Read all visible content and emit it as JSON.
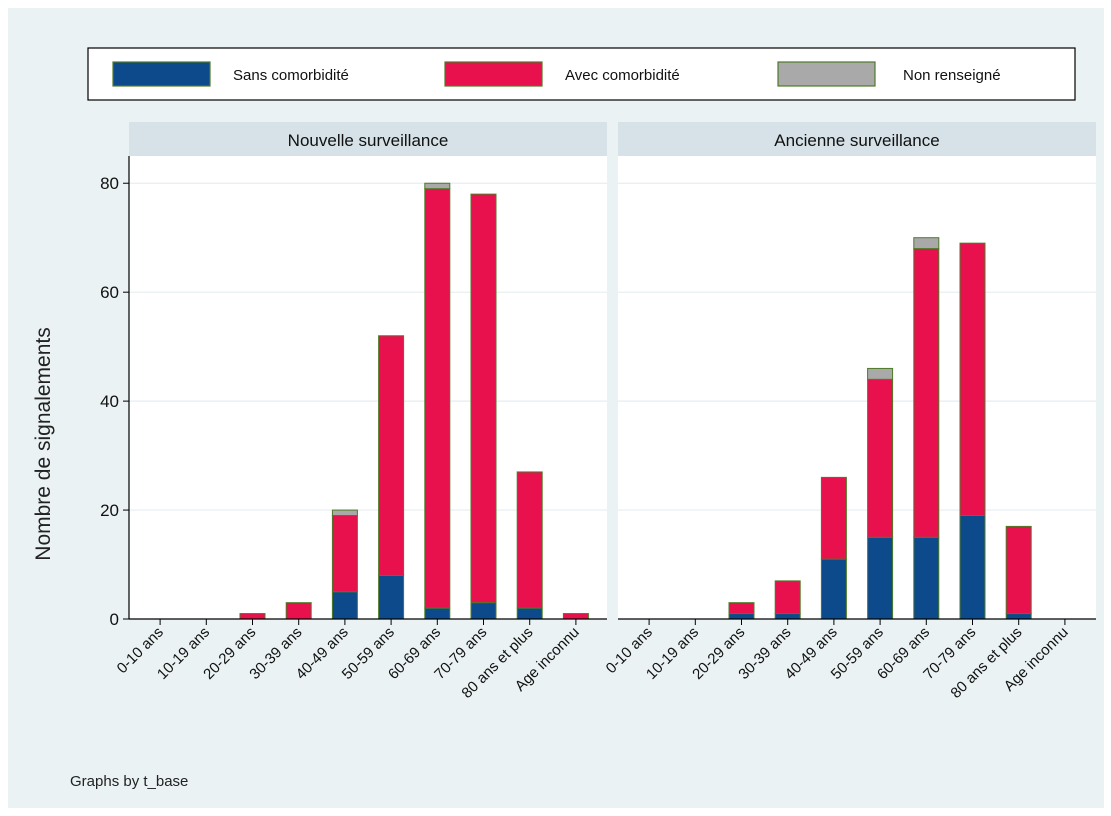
{
  "chart_data": {
    "type": "bar",
    "stacked": true,
    "categories": [
      "0-10 ans",
      "10-19 ans",
      "20-29 ans",
      "30-39 ans",
      "40-49 ans",
      "50-59 ans",
      "60-69 ans",
      "70-79 ans",
      "80 ans et plus",
      "Age inconnu"
    ],
    "ylabel": "Nombre de signalements",
    "ylim": [
      0,
      85
    ],
    "yticks": [
      0,
      20,
      40,
      60,
      80
    ],
    "grid": true,
    "legend_position": "top",
    "legend": [
      {
        "name": "Sans comorbidité",
        "color": "#0d4a8c"
      },
      {
        "name": "Avec comorbidité",
        "color": "#e8104d"
      },
      {
        "name": "Non renseigné",
        "color": "#a9a9a9"
      }
    ],
    "note": "Graphs by t_base",
    "panels": [
      {
        "title": "Nouvelle surveillance",
        "series": [
          {
            "name": "Sans comorbidité",
            "values": [
              0,
              0,
              0,
              0,
              5,
              8,
              2,
              3,
              2,
              0
            ]
          },
          {
            "name": "Avec comorbidité",
            "values": [
              0,
              0,
              1,
              3,
              14,
              44,
              77,
              75,
              25,
              1
            ]
          },
          {
            "name": "Non renseigné",
            "values": [
              0,
              0,
              0,
              0,
              1,
              0,
              1,
              0,
              0,
              0
            ]
          }
        ]
      },
      {
        "title": "Ancienne surveillance",
        "series": [
          {
            "name": "Sans comorbidité",
            "values": [
              0,
              0,
              1,
              1,
              11,
              15,
              15,
              19,
              1,
              0
            ]
          },
          {
            "name": "Avec comorbidité",
            "values": [
              0,
              0,
              2,
              6,
              15,
              29,
              53,
              50,
              16,
              0
            ]
          },
          {
            "name": "Non renseigné",
            "values": [
              0,
              0,
              0,
              0,
              0,
              2,
              2,
              0,
              0,
              0
            ]
          }
        ]
      }
    ]
  },
  "colors": {
    "background": "#eaf2f3",
    "panel_header": "#d6e2e8",
    "bar_edge": "#4f7a28"
  }
}
